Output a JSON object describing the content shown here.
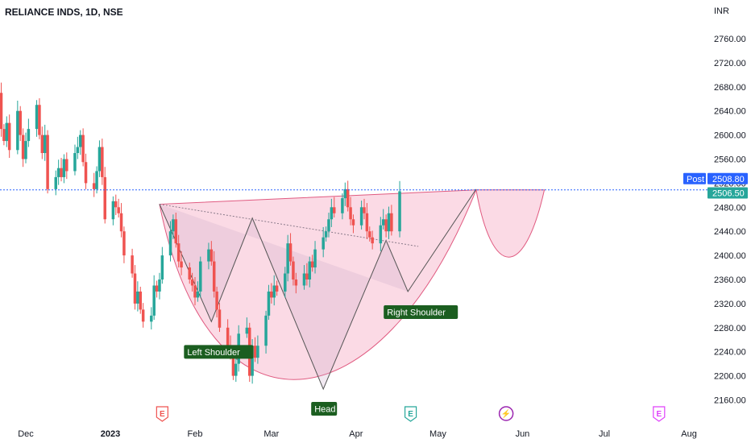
{
  "symbol": {
    "title": "RELIANCE INDS, 1D, NSE",
    "currency": "INR"
  },
  "price_tags": {
    "post_label": "Post",
    "post_value": "2508.80",
    "last_value": "2506.50",
    "post_color": "#2962ff",
    "last_color": "#26a69a"
  },
  "colors": {
    "up": "#26a69a",
    "down": "#ef5350",
    "pattern_fill": "#f8bbd0",
    "pattern_line": "#e05a80",
    "label_bg": "#1b5e20"
  },
  "events": [
    {
      "icon": "earnings-icon",
      "glyph": "E",
      "color": "#ef5350",
      "date": "2023-01-20"
    },
    {
      "icon": "earnings-icon",
      "glyph": "E",
      "color": "#26a69a",
      "date": "2023-04-21"
    },
    {
      "icon": "dividend-icon",
      "glyph": "⚡",
      "color": "#9c27b0",
      "date": "2023-05-26"
    },
    {
      "icon": "earnings-icon",
      "glyph": "E",
      "color": "#e040fb",
      "date": "2023-07-21"
    }
  ],
  "chart_data": {
    "type": "candlestick",
    "title": "RELIANCE INDS, 1D, NSE",
    "ylabel": "INR",
    "ylim": [
      2140,
      2785
    ],
    "grid": false,
    "y_ticks": [
      2160,
      2200,
      2240,
      2280,
      2320,
      2360,
      2400,
      2440,
      2480,
      2520,
      2560,
      2600,
      2640,
      2680,
      2720,
      2760
    ],
    "x_ticks": [
      {
        "label": "Dec",
        "date": "2022-12-01"
      },
      {
        "label": "2023",
        "date": "2023-01-01",
        "bold": true
      },
      {
        "label": "Feb",
        "date": "2023-02-01"
      },
      {
        "label": "Mar",
        "date": "2023-03-01"
      },
      {
        "label": "Apr",
        "date": "2023-04-01"
      },
      {
        "label": "May",
        "date": "2023-05-01"
      },
      {
        "label": "Jun",
        "date": "2023-06-01"
      },
      {
        "label": "Jul",
        "date": "2023-07-01"
      },
      {
        "label": "Aug",
        "date": "2023-08-01"
      }
    ],
    "start_price": 2550,
    "closes": [
      2575,
      2640,
      2690,
      2735,
      2700,
      2740,
      2710,
      2675,
      2650,
      2630,
      2670,
      2610,
      2590,
      2620,
      2575,
      2640,
      2600,
      2560,
      2590,
      2610,
      2650,
      2600,
      2570,
      2600,
      2510,
      2530,
      2545,
      2530,
      2560,
      2540,
      2570,
      2580,
      2600,
      2555,
      2520,
      2510,
      2540,
      2580,
      2530,
      2460,
      2490,
      2480,
      2470,
      2440,
      2400,
      2370,
      2320,
      2340,
      2310,
      2290,
      2300,
      2350,
      2340,
      2360,
      2400,
      2440,
      2460,
      2420,
      2390,
      2380,
      2360,
      2350,
      2330,
      2340,
      2390,
      2410,
      2390,
      2340,
      2310,
      2280,
      2250,
      2240,
      2200,
      2220,
      2270,
      2280,
      2200,
      2250,
      2230,
      2250,
      2300,
      2340,
      2330,
      2350,
      2340,
      2370,
      2420,
      2390,
      2360,
      2350,
      2370,
      2360,
      2390,
      2380,
      2410,
      2430,
      2440,
      2460,
      2480,
      2470,
      2495,
      2510,
      2480,
      2460,
      2450,
      2480,
      2470,
      2440,
      2430,
      2420,
      2450,
      2460,
      2440,
      2470,
      2440,
      2506.5
    ],
    "pattern": {
      "type": "inverse head and shoulders",
      "points": [
        {
          "label": "",
          "date": "2023-01-19",
          "price": 2485
        },
        {
          "label": "Left Shoulder",
          "date": "2023-02-07",
          "price": 2290
        },
        {
          "label": "",
          "date": "2023-02-22",
          "price": 2462
        },
        {
          "label": "Head",
          "date": "2023-03-20",
          "price": 2178
        },
        {
          "label": "",
          "date": "2023-04-12",
          "price": 2425
        },
        {
          "label": "Right Shoulder",
          "date": "2023-04-20",
          "price": 2340
        },
        {
          "label": "",
          "date": "2023-05-15",
          "price": 2510
        }
      ],
      "labels": {
        "left_shoulder": "Left Shoulder",
        "head": "Head",
        "right_shoulder": "Right Shoulder"
      }
    },
    "horizontal_line": 2508.8
  }
}
